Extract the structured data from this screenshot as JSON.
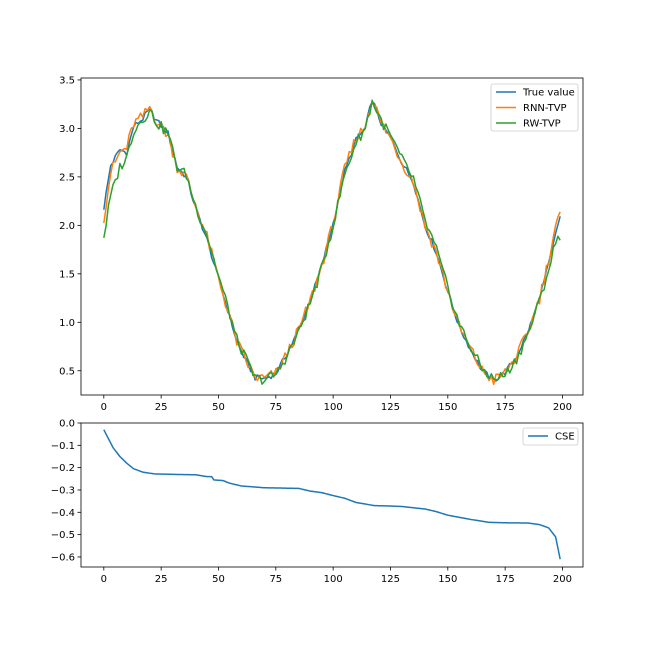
{
  "chart_data": [
    {
      "type": "line",
      "xlim": [
        -9.95,
        208.95
      ],
      "ylim": [
        0.25,
        3.52
      ],
      "xticks": [
        0,
        25,
        50,
        75,
        100,
        125,
        150,
        175,
        200
      ],
      "yticks": [
        0.5,
        1.0,
        1.5,
        2.0,
        2.5,
        3.0,
        3.5
      ],
      "ytick_labels": [
        "0.5",
        "1.0",
        "1.5",
        "2.0",
        "2.5",
        "3.0",
        "3.5"
      ],
      "grid": false,
      "legend_position": "top-right",
      "series": [
        {
          "name": "True value",
          "color": "#1f77b4",
          "noise": 0.03,
          "shift": 0,
          "points": [
            [
              0,
              2.18
            ],
            [
              3,
              2.62
            ],
            [
              7,
              2.78
            ],
            [
              10,
              2.75
            ],
            [
              13,
              3.02
            ],
            [
              17,
              3.1
            ],
            [
              20,
              3.2
            ],
            [
              23,
              3.08
            ],
            [
              28,
              2.95
            ],
            [
              32,
              2.6
            ],
            [
              36,
              2.5
            ],
            [
              40,
              2.18
            ],
            [
              45,
              1.85
            ],
            [
              50,
              1.45
            ],
            [
              55,
              1.05
            ],
            [
              58,
              0.8
            ],
            [
              62,
              0.6
            ],
            [
              66,
              0.43
            ],
            [
              70,
              0.42
            ],
            [
              75,
              0.47
            ],
            [
              80,
              0.68
            ],
            [
              85,
              0.92
            ],
            [
              90,
              1.22
            ],
            [
              95,
              1.58
            ],
            [
              100,
              2.02
            ],
            [
              105,
              2.55
            ],
            [
              110,
              2.88
            ],
            [
              114,
              3.0
            ],
            [
              117,
              3.3
            ],
            [
              121,
              3.05
            ],
            [
              125,
              2.9
            ],
            [
              130,
              2.65
            ],
            [
              135,
              2.45
            ],
            [
              140,
              2.0
            ],
            [
              145,
              1.72
            ],
            [
              150,
              1.32
            ],
            [
              155,
              0.95
            ],
            [
              160,
              0.72
            ],
            [
              165,
              0.5
            ],
            [
              170,
              0.4
            ],
            [
              175,
              0.48
            ],
            [
              180,
              0.65
            ],
            [
              185,
              0.9
            ],
            [
              190,
              1.25
            ],
            [
              194,
              1.6
            ],
            [
              197,
              1.9
            ],
            [
              199,
              2.1
            ]
          ]
        },
        {
          "name": "RNN-TVP",
          "color": "#ff7f0e",
          "noise": 0.06,
          "shift": 0,
          "points": [
            [
              0,
              2.08
            ],
            [
              3,
              2.55
            ],
            [
              7,
              2.75
            ],
            [
              10,
              2.8
            ],
            [
              13,
              3.05
            ],
            [
              17,
              3.12
            ],
            [
              20,
              3.22
            ],
            [
              23,
              3.08
            ],
            [
              28,
              2.93
            ],
            [
              32,
              2.6
            ],
            [
              36,
              2.5
            ],
            [
              40,
              2.2
            ],
            [
              45,
              1.88
            ],
            [
              50,
              1.45
            ],
            [
              55,
              1.05
            ],
            [
              58,
              0.8
            ],
            [
              62,
              0.6
            ],
            [
              66,
              0.43
            ],
            [
              70,
              0.42
            ],
            [
              75,
              0.47
            ],
            [
              80,
              0.68
            ],
            [
              85,
              0.92
            ],
            [
              90,
              1.22
            ],
            [
              95,
              1.58
            ],
            [
              100,
              2.02
            ],
            [
              105,
              2.58
            ],
            [
              110,
              2.9
            ],
            [
              114,
              3.02
            ],
            [
              117,
              3.32
            ],
            [
              121,
              3.05
            ],
            [
              125,
              2.9
            ],
            [
              130,
              2.65
            ],
            [
              135,
              2.45
            ],
            [
              140,
              2.0
            ],
            [
              145,
              1.72
            ],
            [
              150,
              1.32
            ],
            [
              155,
              0.95
            ],
            [
              160,
              0.72
            ],
            [
              165,
              0.5
            ],
            [
              170,
              0.4
            ],
            [
              175,
              0.48
            ],
            [
              180,
              0.65
            ],
            [
              185,
              0.9
            ],
            [
              190,
              1.25
            ],
            [
              194,
              1.65
            ],
            [
              197,
              2.0
            ],
            [
              199,
              2.1
            ]
          ]
        },
        {
          "name": "RW-TVP",
          "color": "#2ca02c",
          "noise": 0.055,
          "shift": 1,
          "points": [
            [
              0,
              1.88
            ],
            [
              3,
              2.3
            ],
            [
              7,
              2.6
            ],
            [
              10,
              2.7
            ],
            [
              13,
              2.98
            ],
            [
              17,
              3.1
            ],
            [
              20,
              3.18
            ],
            [
              23,
              3.06
            ],
            [
              28,
              2.95
            ],
            [
              32,
              2.6
            ],
            [
              36,
              2.52
            ],
            [
              40,
              2.2
            ],
            [
              45,
              1.9
            ],
            [
              50,
              1.48
            ],
            [
              55,
              1.08
            ],
            [
              58,
              0.82
            ],
            [
              62,
              0.62
            ],
            [
              66,
              0.42
            ],
            [
              70,
              0.41
            ],
            [
              75,
              0.46
            ],
            [
              80,
              0.66
            ],
            [
              85,
              0.9
            ],
            [
              90,
              1.2
            ],
            [
              95,
              1.55
            ],
            [
              100,
              2.0
            ],
            [
              105,
              2.52
            ],
            [
              110,
              2.86
            ],
            [
              114,
              3.0
            ],
            [
              117,
              3.28
            ],
            [
              121,
              3.08
            ],
            [
              125,
              2.92
            ],
            [
              130,
              2.68
            ],
            [
              135,
              2.48
            ],
            [
              140,
              2.05
            ],
            [
              145,
              1.75
            ],
            [
              150,
              1.35
            ],
            [
              155,
              0.98
            ],
            [
              160,
              0.74
            ],
            [
              165,
              0.52
            ],
            [
              170,
              0.41
            ],
            [
              175,
              0.46
            ],
            [
              180,
              0.62
            ],
            [
              185,
              0.88
            ],
            [
              190,
              1.22
            ],
            [
              194,
              1.55
            ],
            [
              197,
              1.82
            ],
            [
              199,
              1.9
            ]
          ]
        }
      ]
    },
    {
      "type": "line",
      "xlim": [
        -9.95,
        208.95
      ],
      "ylim": [
        -0.645,
        0.0
      ],
      "xticks": [
        0,
        25,
        50,
        75,
        100,
        125,
        150,
        175,
        200
      ],
      "yticks": [
        0.0,
        -0.1,
        -0.2,
        -0.3,
        -0.4,
        -0.5,
        -0.6
      ],
      "ytick_labels": [
        "0.0",
        "−0.1",
        "−0.2",
        "−0.3",
        "−0.4",
        "−0.5",
        "−0.6"
      ],
      "grid": false,
      "legend_position": "top-right",
      "series": [
        {
          "name": "CSE",
          "color": "#1f77b4",
          "noise": 0,
          "shift": 0,
          "points": [
            [
              0,
              -0.03
            ],
            [
              2,
              -0.07
            ],
            [
              4,
              -0.11
            ],
            [
              7,
              -0.15
            ],
            [
              10,
              -0.18
            ],
            [
              13,
              -0.205
            ],
            [
              17,
              -0.22
            ],
            [
              22,
              -0.228
            ],
            [
              30,
              -0.23
            ],
            [
              40,
              -0.232
            ],
            [
              45,
              -0.24
            ],
            [
              47,
              -0.24
            ],
            [
              48,
              -0.255
            ],
            [
              52,
              -0.258
            ],
            [
              55,
              -0.27
            ],
            [
              60,
              -0.282
            ],
            [
              70,
              -0.29
            ],
            [
              80,
              -0.292
            ],
            [
              85,
              -0.293
            ],
            [
              90,
              -0.305
            ],
            [
              95,
              -0.312
            ],
            [
              100,
              -0.325
            ],
            [
              105,
              -0.337
            ],
            [
              110,
              -0.356
            ],
            [
              118,
              -0.37
            ],
            [
              125,
              -0.372
            ],
            [
              130,
              -0.374
            ],
            [
              140,
              -0.385
            ],
            [
              145,
              -0.397
            ],
            [
              150,
              -0.413
            ],
            [
              160,
              -0.432
            ],
            [
              168,
              -0.445
            ],
            [
              175,
              -0.447
            ],
            [
              185,
              -0.448
            ],
            [
              190,
              -0.455
            ],
            [
              194,
              -0.47
            ],
            [
              197,
              -0.51
            ],
            [
              199,
              -0.61
            ]
          ]
        }
      ]
    }
  ]
}
